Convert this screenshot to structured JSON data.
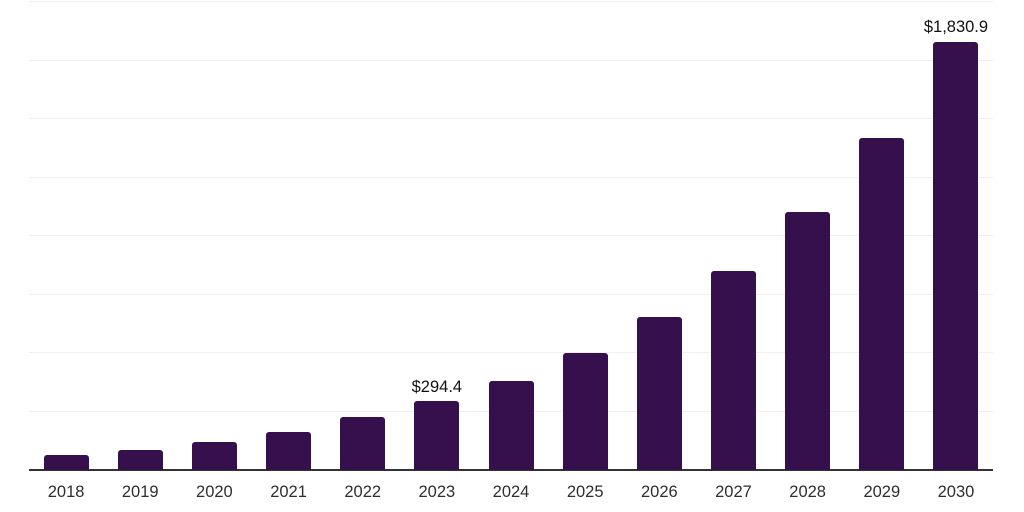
{
  "chart_data": {
    "type": "bar",
    "categories": [
      "2018",
      "2019",
      "2020",
      "2021",
      "2022",
      "2023",
      "2024",
      "2025",
      "2026",
      "2027",
      "2028",
      "2029",
      "2030"
    ],
    "values": [
      63,
      85,
      119,
      162,
      226,
      294.4,
      380,
      499,
      655,
      850,
      1104,
      1417,
      1830.9
    ],
    "labeled_points": [
      {
        "category": "2023",
        "label": "$294.4"
      },
      {
        "category": "2030",
        "label": "$1,830.9"
      }
    ],
    "xlabel": "",
    "ylabel": "",
    "ylim": [
      0,
      2000
    ],
    "gridline_step": 250,
    "grid": "horizontal",
    "legend": "none",
    "colors": {
      "bar": "#35104d",
      "axis_line": "#333333",
      "gridline": "#efefef",
      "tick_label": "#2e2e2e",
      "data_label": "#111111",
      "background": "#ffffff"
    }
  }
}
